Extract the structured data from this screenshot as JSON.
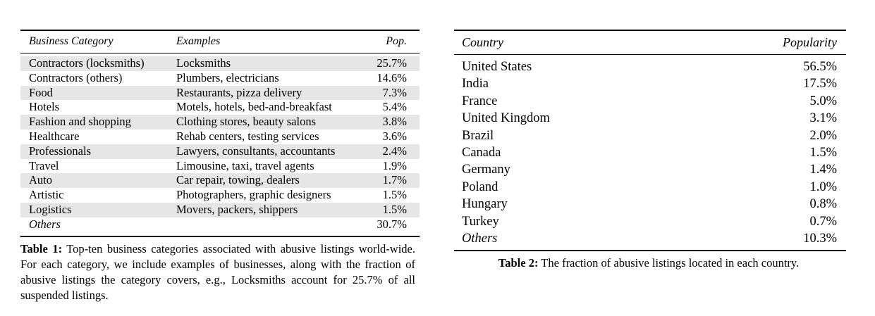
{
  "table1": {
    "headers": {
      "category": "Business Category",
      "examples": "Examples",
      "pop": "Pop."
    },
    "rows": [
      {
        "category": "Contractors (locksmiths)",
        "examples": "Locksmiths",
        "pop": "25.7%",
        "shaded": true
      },
      {
        "category": "Contractors (others)",
        "examples": "Plumbers, electricians",
        "pop": "14.6%",
        "shaded": false
      },
      {
        "category": "Food",
        "examples": "Restaurants, pizza delivery",
        "pop": "7.3%",
        "shaded": true
      },
      {
        "category": "Hotels",
        "examples": "Motels, hotels, bed-and-breakfast",
        "pop": "5.4%",
        "shaded": false
      },
      {
        "category": "Fashion and shopping",
        "examples": "Clothing stores, beauty salons",
        "pop": "3.8%",
        "shaded": true
      },
      {
        "category": "Healthcare",
        "examples": "Rehab centers, testing services",
        "pop": "3.6%",
        "shaded": false
      },
      {
        "category": "Professionals",
        "examples": "Lawyers, consultants, accountants",
        "pop": "2.4%",
        "shaded": true
      },
      {
        "category": "Travel",
        "examples": "Limousine, taxi, travel agents",
        "pop": "1.9%",
        "shaded": false
      },
      {
        "category": "Auto",
        "examples": "Car repair, towing, dealers",
        "pop": "1.7%",
        "shaded": true
      },
      {
        "category": "Artistic",
        "examples": "Photographers, graphic designers",
        "pop": "1.5%",
        "shaded": false
      },
      {
        "category": "Logistics",
        "examples": "Movers, packers, shippers",
        "pop": "1.5%",
        "shaded": true
      },
      {
        "category": "Others",
        "examples": "",
        "pop": "30.7%",
        "shaded": false,
        "italic": true
      }
    ],
    "caption_label": "Table 1:",
    "caption_text": " Top-ten business categories associated with abusive listings world-wide. For each category, we include examples of businesses, along with the fraction of abusive listings the category covers, e.g., Locksmiths account for 25.7% of all suspended listings."
  },
  "table2": {
    "headers": {
      "country": "Country",
      "popularity": "Popularity"
    },
    "rows": [
      {
        "country": "United States",
        "popularity": "56.5%"
      },
      {
        "country": "India",
        "popularity": "17.5%"
      },
      {
        "country": "France",
        "popularity": "5.0%"
      },
      {
        "country": "United Kingdom",
        "popularity": "3.1%"
      },
      {
        "country": "Brazil",
        "popularity": "2.0%"
      },
      {
        "country": "Canada",
        "popularity": "1.5%"
      },
      {
        "country": "Germany",
        "popularity": "1.4%"
      },
      {
        "country": "Poland",
        "popularity": "1.0%"
      },
      {
        "country": "Hungary",
        "popularity": "0.8%"
      },
      {
        "country": "Turkey",
        "popularity": "0.7%"
      },
      {
        "country": "Others",
        "popularity": "10.3%",
        "italic": true
      }
    ],
    "caption_label": "Table 2:",
    "caption_text": " The fraction of abusive listings located in each country."
  }
}
